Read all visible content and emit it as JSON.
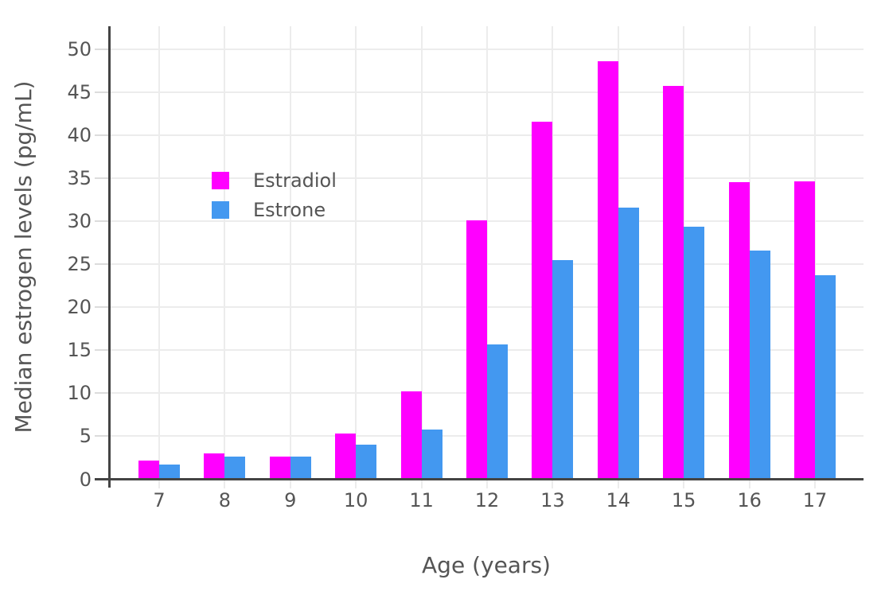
{
  "chart_data": {
    "type": "bar",
    "categories": [
      7,
      8,
      9,
      10,
      11,
      12,
      13,
      14,
      15,
      16,
      17
    ],
    "series": [
      {
        "name": "Estradiol",
        "color": "#FF00FF",
        "values": [
          2.2,
          3.0,
          2.6,
          5.3,
          10.2,
          30.1,
          41.6,
          48.6,
          45.8,
          34.6,
          34.7
        ]
      },
      {
        "name": "Estrone",
        "color": "#4398F0",
        "values": [
          1.7,
          2.6,
          2.6,
          4.0,
          5.8,
          15.7,
          25.5,
          31.6,
          29.4,
          26.6,
          23.7
        ]
      }
    ],
    "title": "",
    "xlabel": "Age (years)",
    "ylabel": "Median estrogen levels (pg/mL)",
    "yticks": [
      0,
      5,
      10,
      15,
      20,
      25,
      30,
      35,
      40,
      45,
      50
    ],
    "ylim": [
      0,
      52.7
    ],
    "grid": true,
    "legend_position": "inside-top-left",
    "colors": {
      "background": "#FFFFFF",
      "gridline": "#ECECEC",
      "axis_line": "#444444",
      "tick_mark": "#DCDCDC",
      "text": "#555555"
    }
  }
}
